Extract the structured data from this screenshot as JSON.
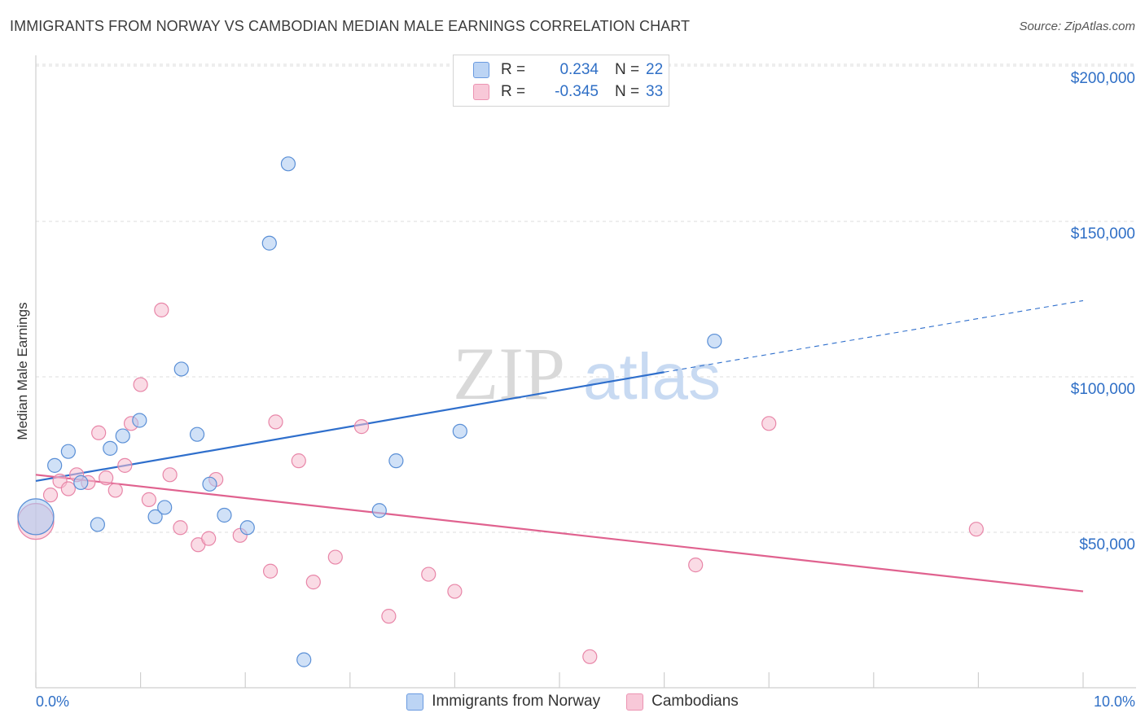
{
  "title": "IMMIGRANTS FROM NORWAY VS CAMBODIAN MEDIAN MALE EARNINGS CORRELATION CHART",
  "source": "Source: ZipAtlas.com",
  "watermark": {
    "part1": "ZIP",
    "part2": "atlas"
  },
  "legend": {
    "rows": [
      {
        "r_label": "R =",
        "r_value": "0.234",
        "n_label": "N =",
        "n_value": "22"
      },
      {
        "r_label": "R =",
        "r_value": "-0.345",
        "n_label": "N =",
        "n_value": "33"
      }
    ]
  },
  "colors": {
    "norway_fill": "#aac8f0",
    "norway_stroke": "#5a8fd6",
    "norway_line": "#2f6fcc",
    "cambodia_fill": "#f6bdd0",
    "cambodia_stroke": "#e886a8",
    "cambodia_line": "#e0628f",
    "axis_text": "#2f6fc6",
    "grid": "#dcdcdc"
  },
  "chart_data": {
    "type": "scatter",
    "title": "IMMIGRANTS FROM NORWAY VS CAMBODIAN MEDIAN MALE EARNINGS CORRELATION CHART",
    "xlabel": "",
    "ylabel": "Median Male Earnings",
    "xlim": [
      0,
      10
    ],
    "ylim": [
      0,
      205000
    ],
    "x_tick_labels": [
      "0.0%",
      "10.0%"
    ],
    "y_ticks": [
      50000,
      100000,
      150000,
      200000
    ],
    "y_tick_labels": [
      "$50,000",
      "$100,000",
      "$150,000",
      "$200,000"
    ],
    "grid": true,
    "legend_position": "top-center",
    "series": [
      {
        "name": "Immigrants from Norway",
        "r": 0.234,
        "n": 22,
        "points": [
          [
            0.0,
            55000
          ],
          [
            0.18,
            71500
          ],
          [
            0.31,
            76000
          ],
          [
            0.43,
            66000
          ],
          [
            0.59,
            52500
          ],
          [
            0.71,
            77000
          ],
          [
            0.83,
            81000
          ],
          [
            0.99,
            86000
          ],
          [
            1.14,
            55000
          ],
          [
            1.23,
            58000
          ],
          [
            1.39,
            102500
          ],
          [
            1.54,
            81500
          ],
          [
            1.66,
            65500
          ],
          [
            1.8,
            55500
          ],
          [
            2.02,
            51500
          ],
          [
            2.23,
            143000
          ],
          [
            2.41,
            168500
          ],
          [
            2.56,
            9000
          ],
          [
            3.28,
            57000
          ],
          [
            3.44,
            73000
          ],
          [
            4.05,
            82500
          ],
          [
            6.48,
            111500
          ]
        ],
        "trend": {
          "x": [
            0.0,
            6.0
          ],
          "y": [
            66500,
            101500
          ],
          "dashed_extension": {
            "x": [
              6.0,
              10.0
            ],
            "y": [
              101500,
              124500
            ]
          }
        }
      },
      {
        "name": "Cambodians",
        "r": -0.345,
        "n": 33,
        "points": [
          [
            0.0,
            53500
          ],
          [
            0.14,
            62000
          ],
          [
            0.23,
            66500
          ],
          [
            0.31,
            64000
          ],
          [
            0.39,
            68500
          ],
          [
            0.5,
            66000
          ],
          [
            0.6,
            82000
          ],
          [
            0.67,
            67500
          ],
          [
            0.76,
            63500
          ],
          [
            0.85,
            71500
          ],
          [
            0.91,
            85000
          ],
          [
            1.0,
            97500
          ],
          [
            1.08,
            60500
          ],
          [
            1.2,
            121500
          ],
          [
            1.28,
            68500
          ],
          [
            1.38,
            51500
          ],
          [
            1.55,
            46000
          ],
          [
            1.65,
            48000
          ],
          [
            1.72,
            67000
          ],
          [
            1.95,
            49000
          ],
          [
            2.24,
            37500
          ],
          [
            2.29,
            85500
          ],
          [
            2.51,
            73000
          ],
          [
            2.65,
            34000
          ],
          [
            2.86,
            42000
          ],
          [
            3.11,
            84000
          ],
          [
            3.37,
            23000
          ],
          [
            3.75,
            36500
          ],
          [
            4.0,
            31000
          ],
          [
            5.29,
            10000
          ],
          [
            6.3,
            39500
          ],
          [
            7.0,
            85000
          ],
          [
            8.98,
            51000
          ]
        ],
        "trend": {
          "x": [
            0.0,
            10.0
          ],
          "y": [
            68500,
            31000
          ]
        }
      }
    ]
  }
}
